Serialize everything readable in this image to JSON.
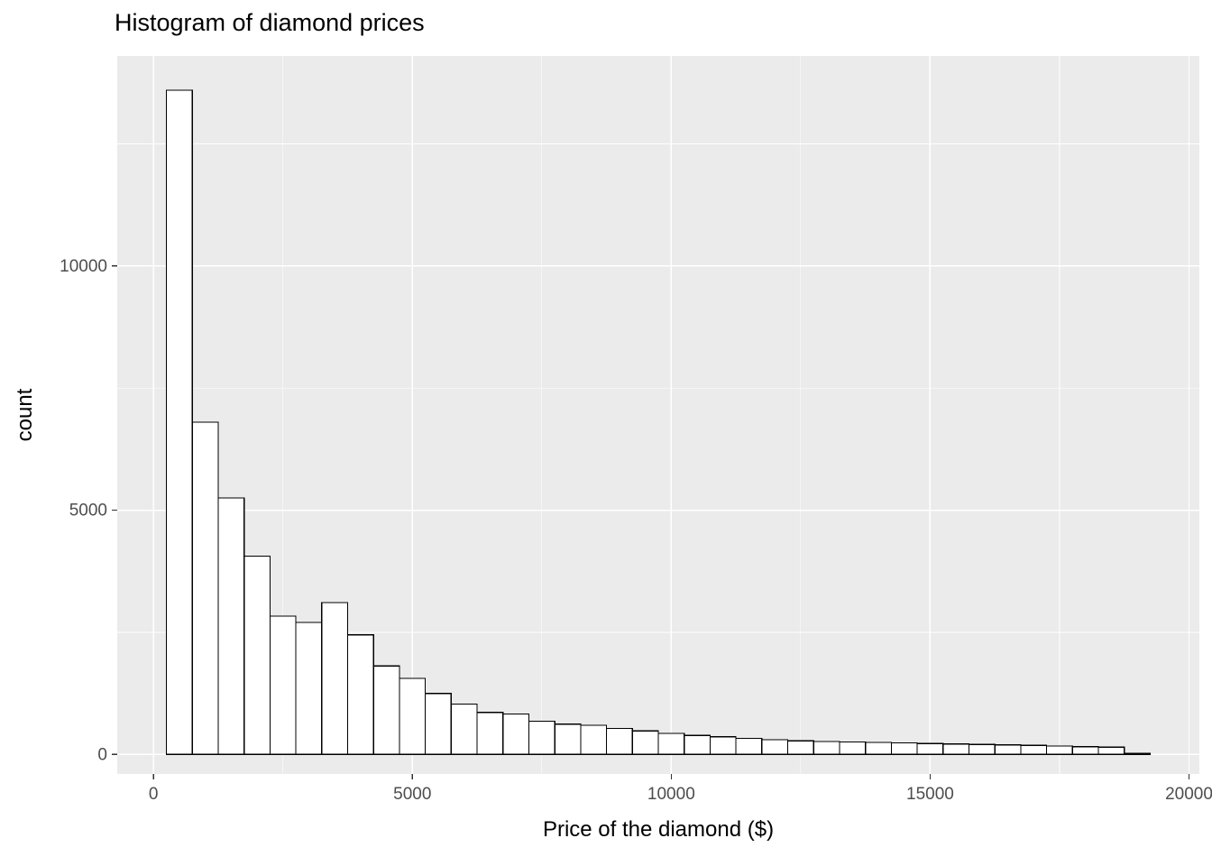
{
  "page": {
    "background": "#FFFFFF"
  },
  "chart": {
    "title": "Histogram of diamond prices",
    "xlabel": "Price of the diamond ($)",
    "ylabel": "count"
  },
  "chart_data": {
    "type": "bar",
    "subtype": "histogram",
    "title": "Histogram of diamond prices",
    "xlabel": "Price of the diamond ($)",
    "ylabel": "count",
    "bin_width": 500,
    "bin_start": 250,
    "bin_centers": [
      500,
      1000,
      1500,
      2000,
      2500,
      3000,
      3500,
      4000,
      4500,
      5000,
      5500,
      6000,
      6500,
      7000,
      7500,
      8000,
      8500,
      9000,
      9500,
      10000,
      10500,
      11000,
      11500,
      12000,
      12500,
      13000,
      13500,
      14000,
      14500,
      15000,
      15500,
      16000,
      16500,
      17000,
      17500,
      18000,
      18500,
      19000
    ],
    "counts": [
      13600,
      6800,
      5250,
      4060,
      2830,
      2700,
      3110,
      2450,
      1810,
      1560,
      1250,
      1030,
      860,
      830,
      680,
      620,
      600,
      530,
      480,
      430,
      390,
      360,
      330,
      300,
      280,
      265,
      255,
      245,
      235,
      225,
      215,
      205,
      195,
      185,
      175,
      160,
      150,
      25
    ],
    "x_ticks_major": [
      0,
      5000,
      10000,
      15000,
      20000
    ],
    "x_ticks_minor": [
      2500,
      7500,
      12500,
      17500
    ],
    "y_ticks_major": [
      0,
      5000,
      10000
    ],
    "y_ticks_minor": [
      2500,
      7500,
      12500
    ],
    "xlim": [
      -700,
      20200
    ],
    "ylim": [
      -400,
      14300
    ],
    "grid": "on",
    "legend_position": "none",
    "colors": {
      "panel_bg": "#EBEBEB",
      "grid": "#FFFFFF",
      "bar_fill": "#FFFFFF",
      "bar_stroke": "#000000",
      "tick_mark": "#333333",
      "tick_label": "#4D4D4D",
      "title_text": "#000000"
    }
  }
}
